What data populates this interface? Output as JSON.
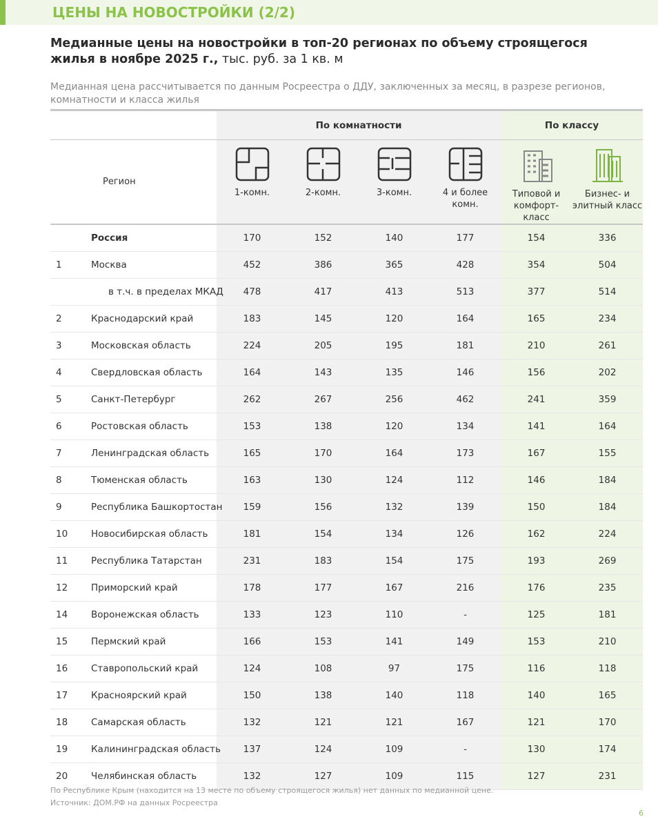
{
  "header": {
    "banner": "ЦЕНЫ НА НОВОСТРОЙКИ (2/2)",
    "title_bold": "Медианные цены на новостройки в топ-20 регионах по объему строящегося жилья в ноябре 2025 г.,",
    "title_rest": "тыс. руб. за 1 кв. м",
    "subtitle": "Медианная цена рассчитывается по данным Росреестра о ДДУ, заключенных за месяц, в разрезе регионов, комнатности и класса жилья"
  },
  "table": {
    "group_headers": [
      "По комнатности",
      "По классу"
    ],
    "region_header": "Регион",
    "columns": [
      "1-комн.",
      "2-комн.",
      "3-комн.",
      "4 и более комн.",
      "Типовой и комфорт-класс",
      "Бизнес- и элитный класс"
    ],
    "rows": [
      {
        "region": "Россия",
        "values": [
          170,
          152,
          140,
          177,
          154,
          336
        ]
      },
      {
        "rank": 1,
        "region": "Москва",
        "values": [
          452,
          386,
          365,
          428,
          354,
          504
        ]
      },
      {
        "region": "в т.ч. в пределах МКАД",
        "values": [
          478,
          417,
          413,
          513,
          377,
          514
        ]
      },
      {
        "rank": 2,
        "region": "Краснодарский край",
        "values": [
          183,
          145,
          120,
          164,
          165,
          234
        ]
      },
      {
        "rank": 3,
        "region": "Московская область",
        "values": [
          224,
          205,
          195,
          181,
          210,
          261
        ]
      },
      {
        "rank": 4,
        "region": "Свердловская область",
        "values": [
          164,
          143,
          135,
          146,
          156,
          202
        ]
      },
      {
        "rank": 5,
        "region": "Санкт-Петербург",
        "values": [
          262,
          267,
          256,
          462,
          241,
          359
        ]
      },
      {
        "rank": 6,
        "region": "Ростовская область",
        "values": [
          153,
          138,
          120,
          134,
          141,
          164
        ]
      },
      {
        "rank": 7,
        "region": "Ленинградская область",
        "values": [
          165,
          170,
          164,
          173,
          167,
          155
        ]
      },
      {
        "rank": 8,
        "region": "Тюменская область",
        "values": [
          163,
          130,
          124,
          112,
          146,
          184
        ]
      },
      {
        "rank": 9,
        "region": "Республика Башкортостан",
        "values": [
          159,
          156,
          132,
          139,
          150,
          184
        ]
      },
      {
        "rank": 10,
        "region": "Новосибирская область",
        "values": [
          181,
          154,
          134,
          126,
          162,
          224
        ]
      },
      {
        "rank": 11,
        "region": "Республика Татарстан",
        "values": [
          231,
          183,
          154,
          175,
          193,
          269
        ]
      },
      {
        "rank": 12,
        "region": "Приморский край",
        "values": [
          178,
          177,
          167,
          216,
          176,
          235
        ]
      },
      {
        "rank": 14,
        "region": "Воронежская область",
        "values": [
          133,
          123,
          110,
          "-",
          125,
          181
        ]
      },
      {
        "rank": 15,
        "region": "Пермский край",
        "values": [
          166,
          153,
          141,
          149,
          153,
          210
        ]
      },
      {
        "rank": 16,
        "region": "Ставропольский край",
        "values": [
          124,
          108,
          97,
          175,
          116,
          118
        ]
      },
      {
        "rank": 17,
        "region": "Красноярский край",
        "values": [
          150,
          138,
          140,
          118,
          140,
          165
        ]
      },
      {
        "rank": 18,
        "region": "Самарская область",
        "values": [
          132,
          121,
          121,
          167,
          121,
          170
        ]
      },
      {
        "rank": 19,
        "region": "Калининградская область",
        "values": [
          137,
          124,
          109,
          "-",
          130,
          174
        ]
      },
      {
        "rank": 20,
        "region": "Челябинская область",
        "values": [
          132,
          127,
          109,
          115,
          127,
          231
        ]
      }
    ]
  },
  "footnotes": [
    "По Республике Крым (находится на 13 месте по объему строящегося жилья) нет данных по медианной цене.",
    "Источник: ДОМ.РФ на данных Росреестра"
  ],
  "page_number": "6"
}
